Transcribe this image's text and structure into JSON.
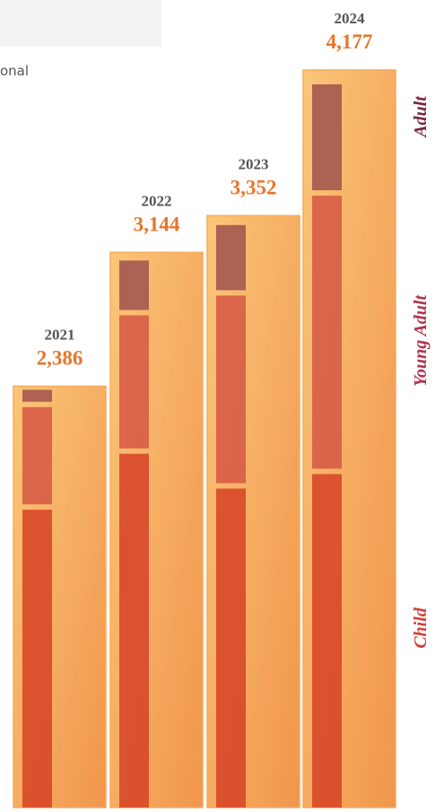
{
  "caption_fragment": "onal",
  "chart_data": {
    "type": "stacked-bar",
    "categories": [
      "2021",
      "2022",
      "2023",
      "2024"
    ],
    "totals": [
      2386,
      3144,
      3352,
      4177
    ],
    "total_labels": [
      "2,386",
      "3,144",
      "3,352",
      "4,177"
    ],
    "series": [
      {
        "name": "Child",
        "color": "#d84a2a",
        "values": [
          1746,
          2074,
          1870,
          1955
        ]
      },
      {
        "name": "Young Adult",
        "color": "#d85e48",
        "values": [
          570,
          780,
          1100,
          1601
        ]
      },
      {
        "name": "Adult",
        "color": "#a65a50",
        "values": [
          70,
          290,
          382,
          621
        ]
      }
    ],
    "panel_color": "#f5a24a",
    "legend_colors": [
      "#d43f3c",
      "#b3304c",
      "#7a2440"
    ]
  }
}
